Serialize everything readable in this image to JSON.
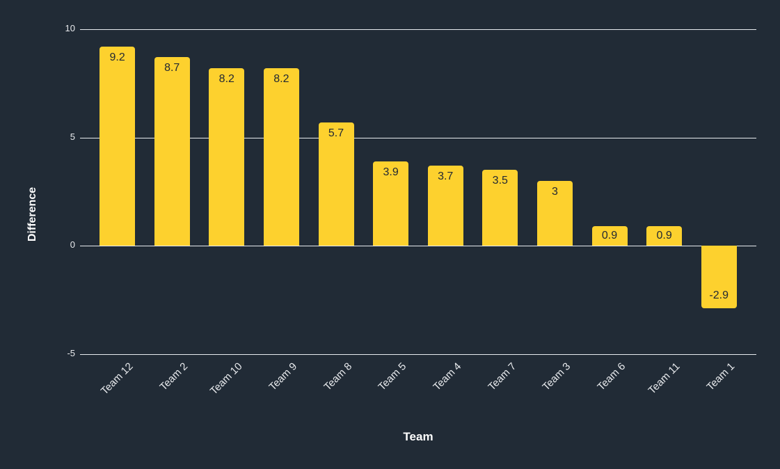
{
  "figure": {
    "background_color": "#212B36",
    "bar_color": "#FDD12E",
    "grid_color": "#E8ECEF",
    "tick_label_color": "#E8EAED",
    "category_label_color": "#E8EAED",
    "value_label_color": "#222833",
    "axis_title_color": "#FFFFFF"
  },
  "chart_data": {
    "type": "bar",
    "title": "",
    "xlabel": "Team",
    "ylabel": "Difference",
    "categories": [
      "Team 12",
      "Team 2",
      "Team 10",
      "Team 9",
      "Team 8",
      "Team 5",
      "Team 4",
      "Team 7",
      "Team 3",
      "Team 6",
      "Team 11",
      "Team 1"
    ],
    "values": [
      9.2,
      8.7,
      8.2,
      8.2,
      5.7,
      3.9,
      3.7,
      3.5,
      3,
      0.9,
      0.9,
      -2.9
    ],
    "value_labels": [
      "9.2",
      "8.7",
      "8.2",
      "8.2",
      "5.7",
      "3.9",
      "3.7",
      "3.5",
      "3",
      "0.9",
      "0.9",
      "-2.9"
    ],
    "y_ticks": [
      10,
      5,
      0,
      -5
    ],
    "ylim": [
      -5,
      10
    ],
    "grid": true,
    "legend": false,
    "bar_value_labels_shown": true,
    "x_tick_rotation_deg": 45
  }
}
